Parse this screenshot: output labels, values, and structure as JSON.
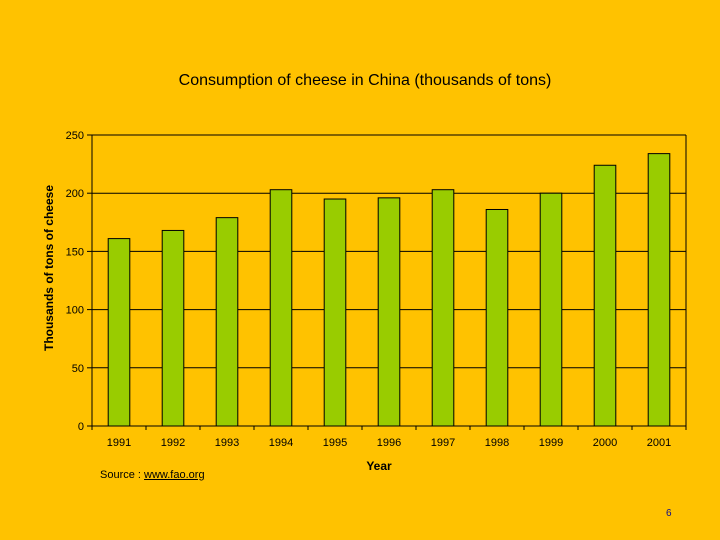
{
  "colors": {
    "background": "#FFC200",
    "bar_fill": "#99CC00",
    "bar_stroke": "#000000",
    "gridline": "#000000"
  },
  "chart_data": {
    "type": "bar",
    "title": "Consumption of cheese in China (thousands of tons)",
    "xlabel": "Year",
    "ylabel": "Thousands of tons of cheese",
    "categories": [
      "1991",
      "1992",
      "1993",
      "1994",
      "1995",
      "1996",
      "1997",
      "1998",
      "1999",
      "2000",
      "2001"
    ],
    "values": [
      161,
      168,
      179,
      203,
      195,
      196,
      203,
      186,
      200,
      224,
      234
    ],
    "ylim": [
      0,
      250
    ],
    "yticks": [
      "0",
      "50",
      "100",
      "150",
      "200",
      "250"
    ],
    "grid": true
  },
  "footer": {
    "source_prefix": "Source : ",
    "source_link": "www.fao.org",
    "page_number": "6"
  }
}
